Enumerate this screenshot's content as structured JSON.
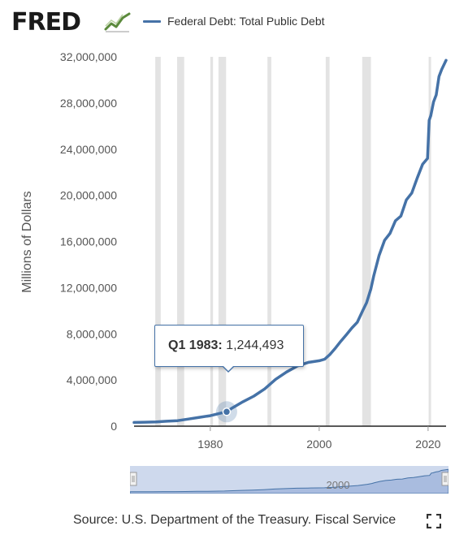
{
  "header": {
    "logo_text": "FRED",
    "logo_icon": "line-chart-icon",
    "series_label": "Federal Debt: Total Public Debt"
  },
  "tooltip": {
    "date": "Q1 1983:",
    "value": "1,244,493"
  },
  "footer": {
    "source": "Source: U.S. Department of the Treasury. Fiscal Service",
    "fullscreen_icon": "fullscreen-icon"
  },
  "navigator": {
    "tick_label": "2000"
  },
  "colors": {
    "series": "#4572a7",
    "recession": "#e3e3e3",
    "navigator_fill": "#c5d2ea"
  },
  "chart_data": {
    "type": "line",
    "title": "",
    "xlabel": "",
    "ylabel": "Millions of Dollars",
    "xlim": [
      1966,
      2023.3
    ],
    "ylim": [
      0,
      32000000
    ],
    "y_ticks": [
      0,
      4000000,
      8000000,
      12000000,
      16000000,
      20000000,
      24000000,
      28000000,
      32000000
    ],
    "y_tick_labels": [
      "0",
      "4,000,000",
      "8,000,000",
      "12,000,000",
      "16,000,000",
      "20,000,000",
      "24,000,000",
      "28,000,000",
      "32,000,000"
    ],
    "x_ticks": [
      1980,
      2000,
      2020
    ],
    "x_tick_labels": [
      "1980",
      "2000",
      "2020"
    ],
    "grid": false,
    "legend": "top",
    "recessions": [
      [
        1969.9,
        1970.9
      ],
      [
        1973.9,
        1975.2
      ],
      [
        1980.0,
        1980.5
      ],
      [
        1981.5,
        1982.9
      ],
      [
        1990.5,
        1991.2
      ],
      [
        2001.2,
        2001.9
      ],
      [
        2007.9,
        2009.5
      ],
      [
        2020.1,
        2020.4
      ]
    ],
    "highlight": {
      "x": 1983.0,
      "y": 1244493
    },
    "series": [
      {
        "name": "Federal Debt: Total Public Debt",
        "x": [
          1966,
          1968,
          1970,
          1972,
          1974,
          1976,
          1978,
          1980,
          1982,
          1983,
          1984,
          1986,
          1988,
          1990,
          1992,
          1994,
          1996,
          1998,
          2000,
          2001,
          2002,
          2003,
          2004,
          2005,
          2006,
          2007,
          2008,
          2008.7,
          2009.5,
          2010,
          2011,
          2012,
          2013,
          2014,
          2015,
          2016,
          2017,
          2018,
          2019,
          2019.9,
          2020.2,
          2020.5,
          2021,
          2021.5,
          2022,
          2022.5,
          2023,
          2023.3
        ],
        "y": [
          320000,
          345000,
          370000,
          430000,
          480000,
          620000,
          770000,
          910000,
          1140000,
          1244493,
          1570000,
          2120000,
          2600000,
          3230000,
          4060000,
          4690000,
          5220000,
          5530000,
          5670000,
          5800000,
          6230000,
          6780000,
          7380000,
          7930000,
          8510000,
          9010000,
          10020000,
          10700000,
          11900000,
          13000000,
          14800000,
          16100000,
          16700000,
          17800000,
          18200000,
          19600000,
          20200000,
          21500000,
          22700000,
          23200000,
          26500000,
          26900000,
          28100000,
          28700000,
          30300000,
          30900000,
          31400000,
          31700000
        ]
      }
    ]
  }
}
